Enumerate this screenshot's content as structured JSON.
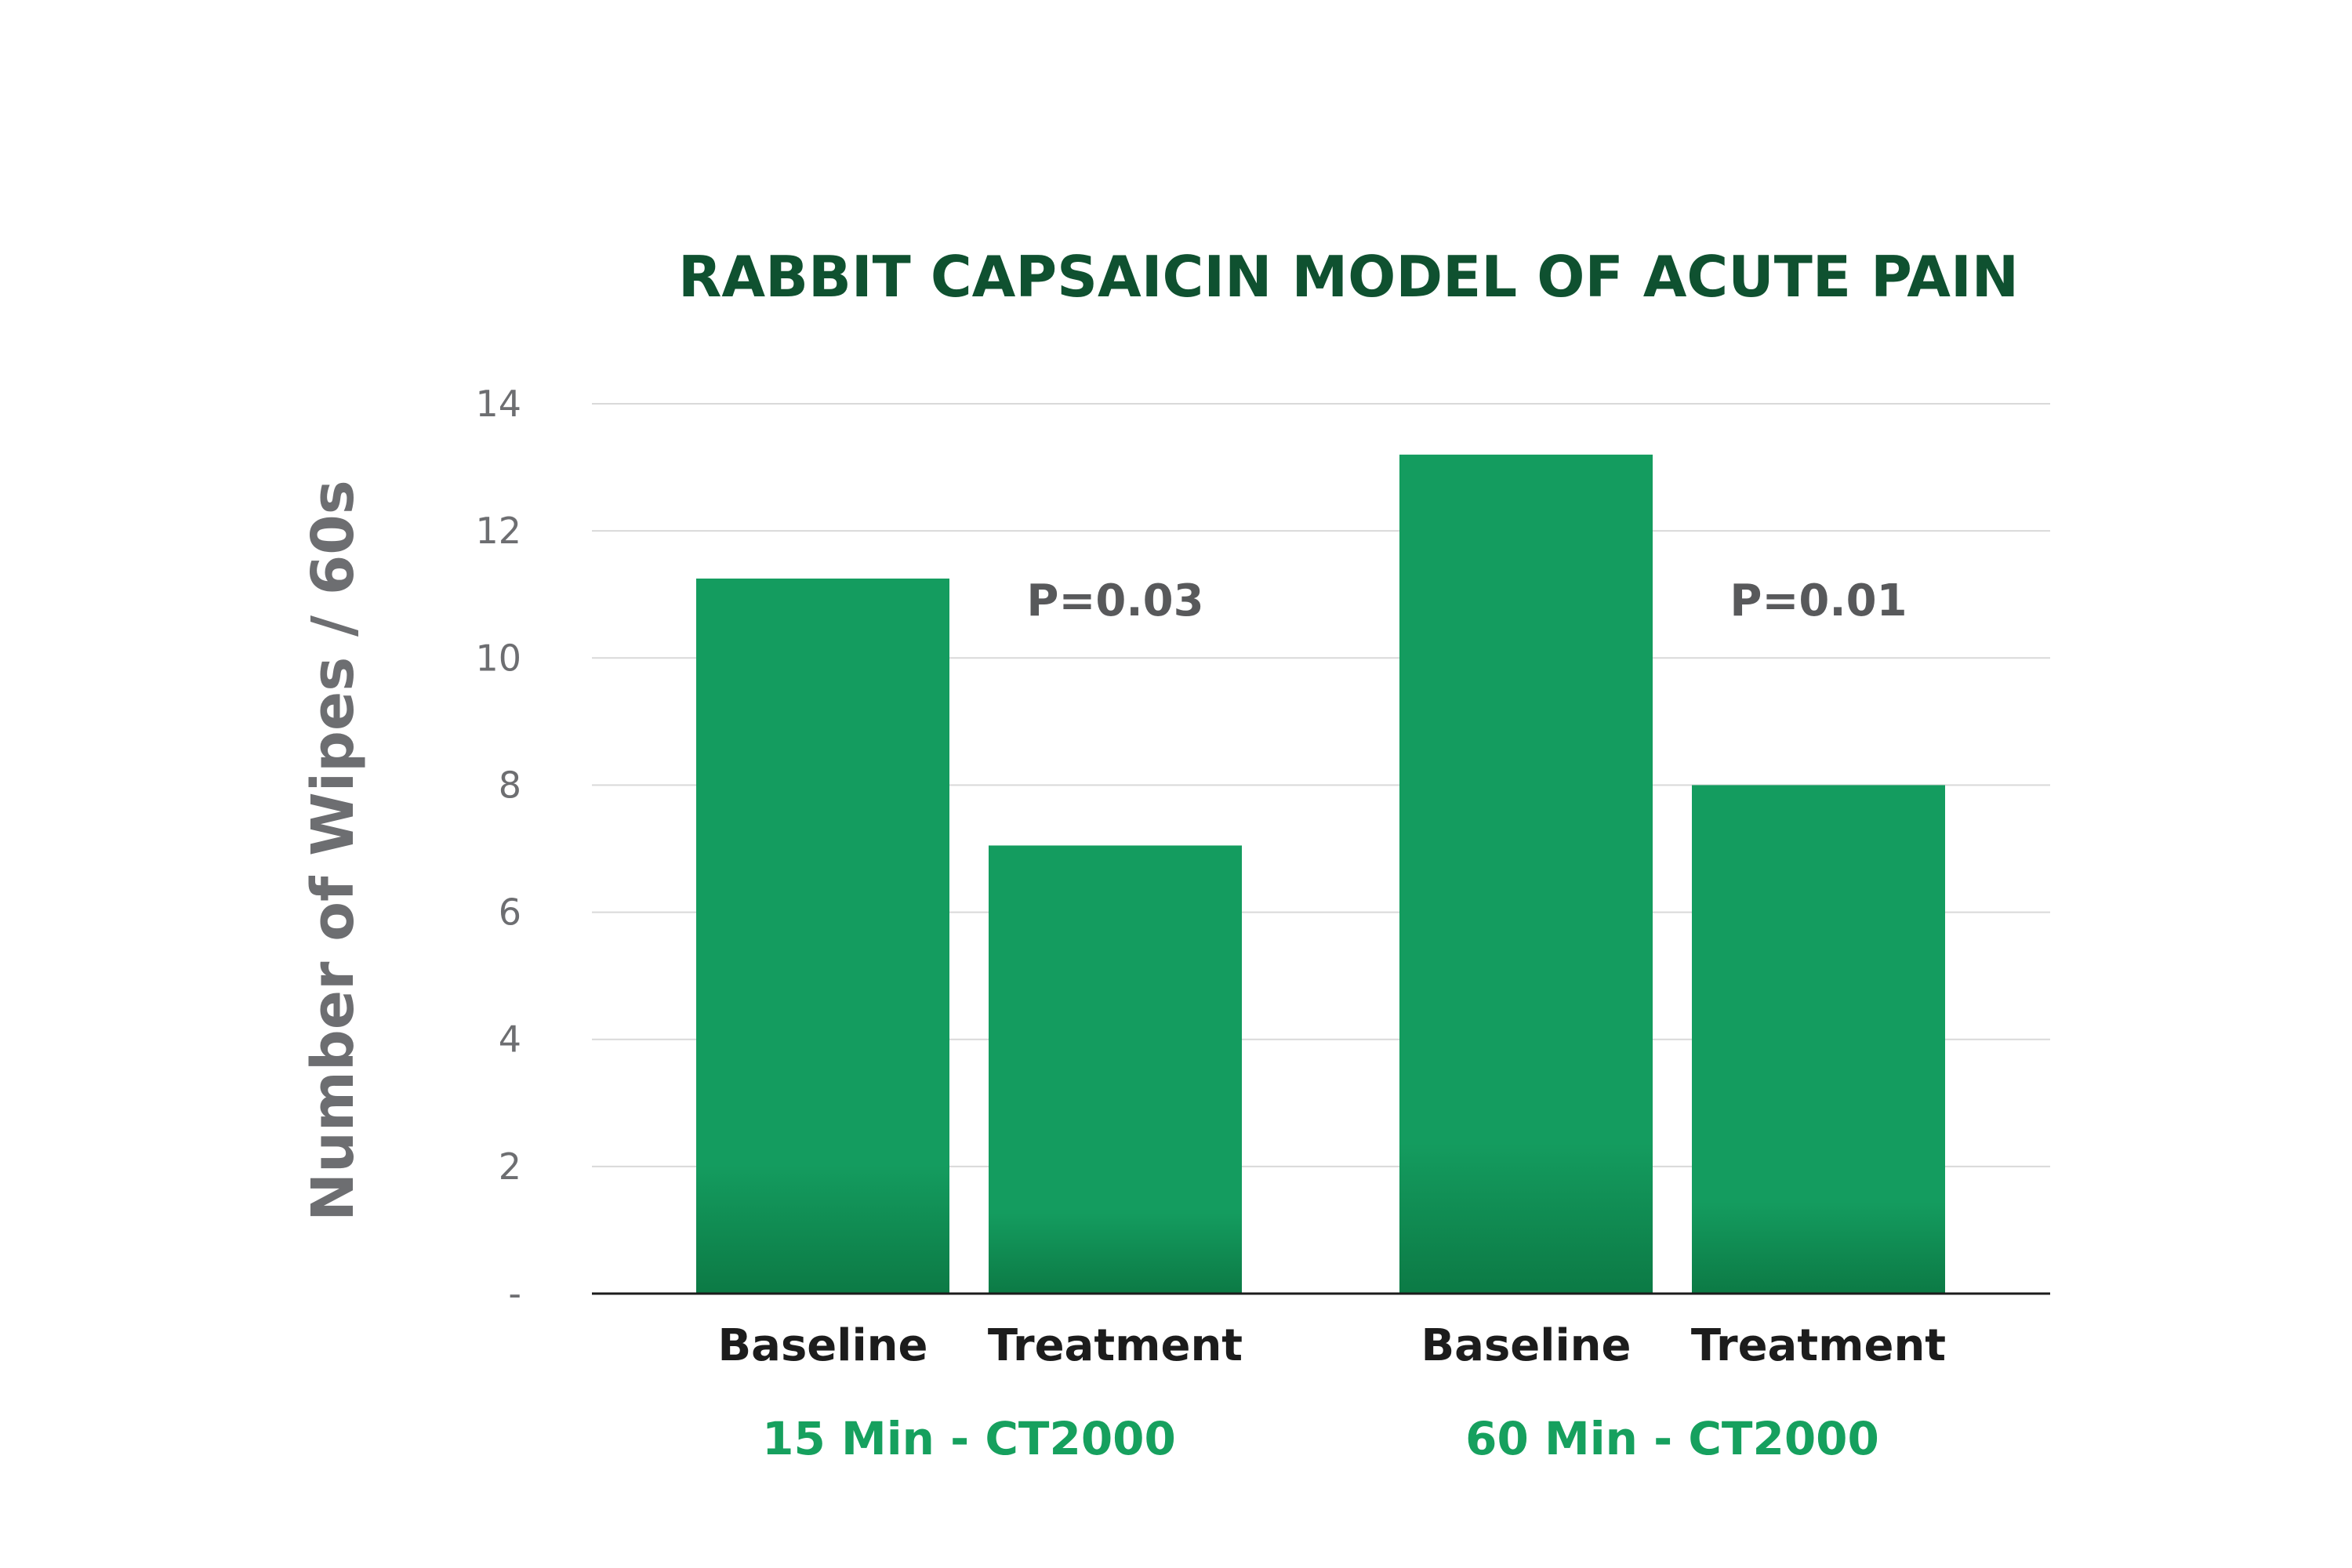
{
  "chart_data": {
    "type": "bar",
    "title": "RABBIT CAPSAICIN MODEL OF ACUTE PAIN",
    "ylabel": "Number of Wipes / 60s",
    "ylim": [
      0,
      14
    ],
    "yticks": [
      {
        "value": 0,
        "label": "-"
      },
      {
        "value": 2,
        "label": "2"
      },
      {
        "value": 4,
        "label": "4"
      },
      {
        "value": 6,
        "label": "6"
      },
      {
        "value": 8,
        "label": "8"
      },
      {
        "value": 10,
        "label": "10"
      },
      {
        "value": 12,
        "label": "12"
      },
      {
        "value": 14,
        "label": "14"
      }
    ],
    "grid": true,
    "groups": [
      {
        "label": "15 Min - CT2000",
        "annotation": "P=0.03",
        "bars": [
          {
            "category": "Baseline",
            "value": 11.25
          },
          {
            "category": "Treatment",
            "value": 7.05
          }
        ]
      },
      {
        "label": "60 Min - CT2000",
        "annotation": "P=0.01",
        "bars": [
          {
            "category": "Baseline",
            "value": 13.2
          },
          {
            "category": "Treatment",
            "value": 8.0
          }
        ]
      }
    ],
    "colors": {
      "bar": "#149c5f",
      "bar_base": "#0c7a45",
      "title": "#0f5130",
      "group_label": "#16a05e"
    }
  }
}
